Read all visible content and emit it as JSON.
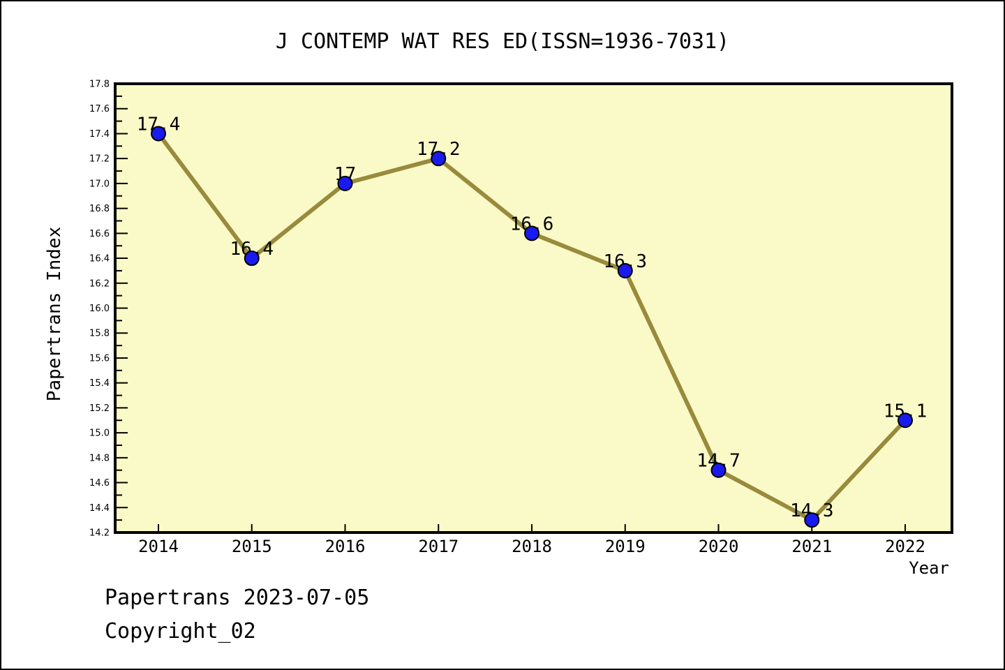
{
  "chart_data": {
    "type": "line",
    "title": "J CONTEMP WAT RES ED(ISSN=1936-7031)",
    "xlabel": "Year",
    "ylabel": "Papertrans Index",
    "x": [
      2014,
      2015,
      2016,
      2017,
      2018,
      2019,
      2020,
      2021,
      2022
    ],
    "series": [
      {
        "name": "Papertrans Index",
        "values": [
          17.4,
          16.4,
          17,
          17.2,
          16.6,
          16.3,
          14.7,
          14.3,
          15.1
        ],
        "point_labels": [
          "17.4",
          "16.4",
          "17",
          "17.2",
          "16.6",
          "16.3",
          "14.7",
          "14.3",
          "15.1"
        ]
      }
    ],
    "ylim": [
      14.2,
      17.8
    ],
    "y_major_step": 0.2,
    "y_minor_step": 0.1,
    "grid": "off",
    "legend": "none",
    "colors": {
      "line": "#998a3c",
      "marker_fill": "#1a1aee",
      "marker_edge": "#000000",
      "plot_background": "#fafac8",
      "figure_background": "#ffffff",
      "axis": "#000000",
      "text": "#000000"
    }
  },
  "footer": {
    "line1": "Papertrans 2023-07-05",
    "line2": "Copyright_02"
  }
}
